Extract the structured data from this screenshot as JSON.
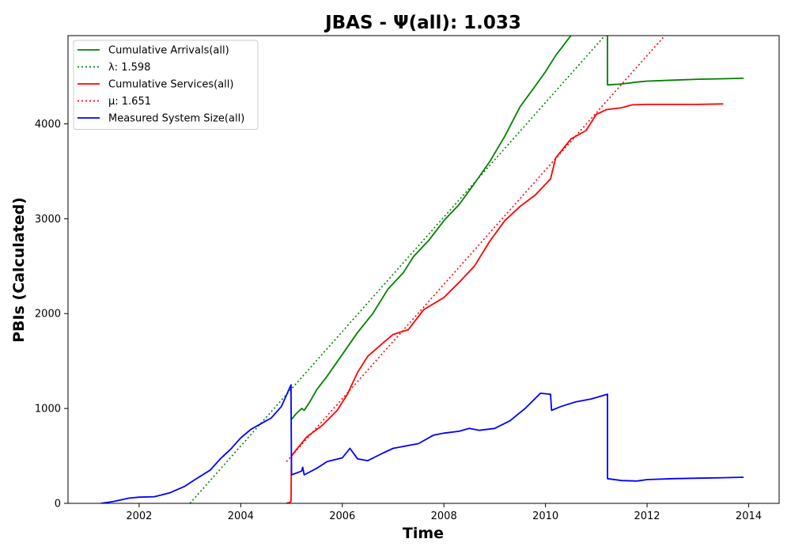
{
  "chart_data": {
    "type": "line",
    "title": "JBAS -  Ψ(all): 1.033",
    "xlabel": "Time",
    "ylabel": "PBIs (Calculated)",
    "xlim": [
      2000.6,
      2014.6
    ],
    "ylim": [
      0,
      4930
    ],
    "xticks": [
      2002,
      2004,
      2006,
      2008,
      2010,
      2012,
      2014
    ],
    "yticks": [
      0,
      1000,
      2000,
      3000,
      4000
    ],
    "grid": false,
    "legend_position": "top-left",
    "series": [
      {
        "name": "Cumulative Arrivals(all)",
        "color": "#008000",
        "style": "solid",
        "points": [
          [
            2004.99,
            880
          ],
          [
            2005.1,
            950
          ],
          [
            2005.2,
            1000
          ],
          [
            2005.25,
            980
          ],
          [
            2005.35,
            1060
          ],
          [
            2005.5,
            1200
          ],
          [
            2005.7,
            1340
          ],
          [
            2006.0,
            1570
          ],
          [
            2006.3,
            1800
          ],
          [
            2006.6,
            2000
          ],
          [
            2006.9,
            2260
          ],
          [
            2007.2,
            2430
          ],
          [
            2007.4,
            2600
          ],
          [
            2007.7,
            2770
          ],
          [
            2008.0,
            2980
          ],
          [
            2008.3,
            3150
          ],
          [
            2008.6,
            3370
          ],
          [
            2008.9,
            3600
          ],
          [
            2009.2,
            3870
          ],
          [
            2009.5,
            4180
          ],
          [
            2009.8,
            4400
          ],
          [
            2010.0,
            4550
          ],
          [
            2010.2,
            4720
          ],
          [
            2010.5,
            4930
          ]
        ]
      },
      {
        "name": "Cumulative Arrivals(all)",
        "color": "#008000",
        "style": "solid",
        "points": [
          [
            2011.22,
            4930
          ],
          [
            2011.22,
            4410
          ],
          [
            2011.5,
            4420
          ],
          [
            2011.8,
            4440
          ],
          [
            2012.0,
            4450
          ],
          [
            2012.5,
            4460
          ],
          [
            2013.0,
            4470
          ],
          [
            2013.5,
            4475
          ],
          [
            2013.9,
            4480
          ]
        ]
      },
      {
        "name": "λ: 1.598",
        "color": "#008000",
        "style": "dotted",
        "points": [
          [
            2003.0,
            0
          ],
          [
            2011.17,
            4930
          ]
        ]
      },
      {
        "name": "Cumulative Services(all)",
        "color": "#ff0000",
        "style": "solid",
        "points": [
          [
            2004.9,
            0
          ],
          [
            2004.97,
            10
          ],
          [
            2004.99,
            20
          ],
          [
            2005.0,
            500
          ],
          [
            2005.1,
            570
          ],
          [
            2005.3,
            700
          ],
          [
            2005.6,
            820
          ],
          [
            2005.9,
            980
          ],
          [
            2006.1,
            1150
          ],
          [
            2006.3,
            1380
          ],
          [
            2006.5,
            1550
          ],
          [
            2006.8,
            1690
          ],
          [
            2007.0,
            1780
          ],
          [
            2007.3,
            1830
          ],
          [
            2007.6,
            2040
          ],
          [
            2008.0,
            2170
          ],
          [
            2008.3,
            2330
          ],
          [
            2008.6,
            2500
          ],
          [
            2008.9,
            2760
          ],
          [
            2009.2,
            2980
          ],
          [
            2009.5,
            3130
          ],
          [
            2009.8,
            3250
          ],
          [
            2010.1,
            3420
          ],
          [
            2010.2,
            3640
          ],
          [
            2010.5,
            3840
          ],
          [
            2010.8,
            3930
          ],
          [
            2011.0,
            4100
          ],
          [
            2011.2,
            4150
          ],
          [
            2011.5,
            4170
          ],
          [
            2011.7,
            4200
          ],
          [
            2012.0,
            4205
          ],
          [
            2012.5,
            4205
          ],
          [
            2013.0,
            4205
          ],
          [
            2013.5,
            4210
          ]
        ]
      },
      {
        "name": "μ: 1.651",
        "color": "#ff0000",
        "style": "dotted",
        "points": [
          [
            2004.9,
            440
          ],
          [
            2012.35,
            4930
          ]
        ]
      },
      {
        "name": "Measured System Size(all)",
        "color": "#0000ff",
        "style": "solid",
        "points": [
          [
            2001.25,
            0
          ],
          [
            2001.5,
            20
          ],
          [
            2001.8,
            55
          ],
          [
            2002.0,
            65
          ],
          [
            2002.3,
            70
          ],
          [
            2002.6,
            110
          ],
          [
            2002.9,
            180
          ],
          [
            2003.1,
            250
          ],
          [
            2003.4,
            350
          ],
          [
            2003.6,
            470
          ],
          [
            2003.8,
            570
          ],
          [
            2004.0,
            690
          ],
          [
            2004.2,
            780
          ],
          [
            2004.4,
            840
          ],
          [
            2004.6,
            900
          ],
          [
            2004.8,
            1020
          ],
          [
            2004.99,
            1250
          ],
          [
            2005.0,
            300
          ],
          [
            2005.2,
            340
          ],
          [
            2005.22,
            380
          ],
          [
            2005.25,
            300
          ],
          [
            2005.5,
            370
          ],
          [
            2005.7,
            440
          ],
          [
            2006.0,
            480
          ],
          [
            2006.15,
            580
          ],
          [
            2006.3,
            470
          ],
          [
            2006.5,
            450
          ],
          [
            2006.8,
            530
          ],
          [
            2007.0,
            580
          ],
          [
            2007.5,
            630
          ],
          [
            2007.8,
            720
          ],
          [
            2008.0,
            740
          ],
          [
            2008.3,
            760
          ],
          [
            2008.5,
            790
          ],
          [
            2008.7,
            770
          ],
          [
            2009.0,
            790
          ],
          [
            2009.3,
            870
          ],
          [
            2009.6,
            1000
          ],
          [
            2009.9,
            1160
          ],
          [
            2010.1,
            1150
          ],
          [
            2010.12,
            980
          ],
          [
            2010.3,
            1020
          ],
          [
            2010.6,
            1070
          ],
          [
            2010.9,
            1100
          ],
          [
            2011.22,
            1150
          ],
          [
            2011.22,
            260
          ],
          [
            2011.5,
            240
          ],
          [
            2011.8,
            235
          ],
          [
            2012.0,
            250
          ],
          [
            2012.5,
            260
          ],
          [
            2013.0,
            265
          ],
          [
            2013.5,
            270
          ],
          [
            2013.9,
            275
          ]
        ]
      }
    ],
    "legend": [
      {
        "label": "Cumulative Arrivals(all)",
        "color": "#008000",
        "style": "solid"
      },
      {
        "label": "λ: 1.598",
        "color": "#008000",
        "style": "dotted"
      },
      {
        "label": "Cumulative Services(all)",
        "color": "#ff0000",
        "style": "solid"
      },
      {
        "label": "μ: 1.651",
        "color": "#ff0000",
        "style": "dotted"
      },
      {
        "label": "Measured System Size(all)",
        "color": "#0000ff",
        "style": "solid"
      }
    ]
  }
}
